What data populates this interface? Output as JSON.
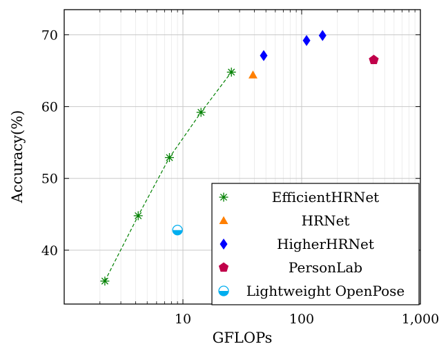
{
  "chart_data": {
    "type": "scatter",
    "xlabel": "GFLOPs",
    "ylabel": "Accuracy(%)",
    "xscale": "log",
    "xlim": [
      1,
      1000
    ],
    "ylim": [
      32.5,
      73.5
    ],
    "xticks": [
      {
        "value": 10,
        "label": "10"
      },
      {
        "value": 100,
        "label": "100"
      },
      {
        "value": 1000,
        "label": "1,000"
      }
    ],
    "yticks": [
      {
        "value": 40,
        "label": "40"
      },
      {
        "value": 50,
        "label": "50"
      },
      {
        "value": 60,
        "label": "60"
      },
      {
        "value": 70,
        "label": "70"
      }
    ],
    "grid": true,
    "legend_position": "bottom-right",
    "series": [
      {
        "name": "EfficientHRNet",
        "marker": "asterisk",
        "color": "#008000",
        "line": "dashed",
        "points": [
          {
            "x": 2.2,
            "y": 35.7
          },
          {
            "x": 4.2,
            "y": 44.8
          },
          {
            "x": 7.7,
            "y": 52.9
          },
          {
            "x": 14.2,
            "y": 59.2
          },
          {
            "x": 25.6,
            "y": 64.8
          }
        ]
      },
      {
        "name": "HRNet",
        "marker": "triangle",
        "color": "#ff7f00",
        "line": "none",
        "points": [
          {
            "x": 38.9,
            "y": 64.4
          }
        ]
      },
      {
        "name": "HigherHRNet",
        "marker": "diamond",
        "color": "#0000ff",
        "line": "none",
        "points": [
          {
            "x": 47.9,
            "y": 67.1
          },
          {
            "x": 110,
            "y": 69.2
          },
          {
            "x": 150,
            "y": 69.9
          }
        ]
      },
      {
        "name": "PersonLab",
        "marker": "pentagon",
        "color": "#c0004a",
        "line": "none",
        "points": [
          {
            "x": 405,
            "y": 66.5
          }
        ]
      },
      {
        "name": "Lightweight OpenPose",
        "marker": "halfcircle",
        "color": "#00aeef",
        "line": "none",
        "points": [
          {
            "x": 9.0,
            "y": 42.8
          }
        ]
      }
    ]
  }
}
